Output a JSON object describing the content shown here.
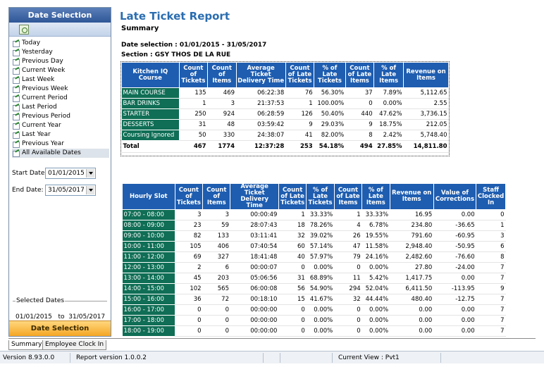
{
  "sidebar": {
    "title": "Date Selection",
    "date_options": [
      "Today",
      "Yesterday",
      "Previous Day",
      "Current Week",
      "Last Week",
      "Previous Week",
      "Current Period",
      "Last Period",
      "Previous Period",
      "Current Year",
      "Last Year",
      "Previous Year",
      "All Available Dates"
    ],
    "selected_option": "All Available Dates",
    "start_label": "Start Date:",
    "start_value": "01/01/2015",
    "end_label": "End Date:",
    "end_value": "31/05/2017",
    "selected_dates_legend": "Selected Dates",
    "selected_from": "01/01/2015",
    "selected_to_word": "to",
    "selected_to": "31/05/2017",
    "button_label": "Date Selection"
  },
  "report": {
    "title": "Late Ticket Report",
    "subtitle": "Summary",
    "date_selection": "Date selection : 01/01/2015 - 31/05/2017",
    "section": "Section : GSY THOS DE LA RUE"
  },
  "kitchen_table": {
    "headers": [
      "Kitchen IQ Course",
      "Count of Tickets",
      "Count of Items",
      "Average Ticket Delivery Time",
      "Count of Late Tickets",
      "% of Late Tickets",
      "Count of Late Items",
      "% of Late Items",
      "Revenue on Items"
    ],
    "rows": [
      [
        "MAIN COURSE",
        "135",
        "469",
        "06:22:38",
        "76",
        "56.30%",
        "37",
        "7.89%",
        "5,112.65"
      ],
      [
        "BAR DRINKS",
        "1",
        "3",
        "21:37:53",
        "1",
        "100.00%",
        "0",
        "0.00%",
        "2.55"
      ],
      [
        "STARTER",
        "250",
        "924",
        "06:28:59",
        "126",
        "50.40%",
        "440",
        "47.62%",
        "3,736.15"
      ],
      [
        "DESSERTS",
        "31",
        "48",
        "03:59:42",
        "9",
        "29.03%",
        "9",
        "18.75%",
        "212.05"
      ],
      [
        "Coursing Ignored",
        "50",
        "330",
        "24:38:07",
        "41",
        "82.00%",
        "8",
        "2.42%",
        "5,748.40"
      ]
    ],
    "total": [
      "Total",
      "467",
      "1774",
      "12:37:28",
      "253",
      "54.18%",
      "494",
      "27.85%",
      "14,811.80"
    ]
  },
  "hourly_table": {
    "headers": [
      "Hourly Slot",
      "Count of Tickets",
      "Count of Items",
      "Average Ticket Delivery Time",
      "Count of Late Tickets",
      "% of Late Tickets",
      "Count of Late Items",
      "% of Late Items",
      "Revenue on Items",
      "Value of Corrections",
      "Staff Clocked In"
    ],
    "rows": [
      [
        "07:00 - 08:00",
        "3",
        "3",
        "00:00:49",
        "1",
        "33.33%",
        "1",
        "33.33%",
        "16.95",
        "0.00",
        "0"
      ],
      [
        "08:00 - 09:00",
        "23",
        "59",
        "28:07:43",
        "18",
        "78.26%",
        "4",
        "6.78%",
        "234.80",
        "-36.65",
        "1"
      ],
      [
        "09:00 - 10:00",
        "82",
        "133",
        "03:11:41",
        "32",
        "39.02%",
        "26",
        "19.55%",
        "791.60",
        "-60.95",
        "3"
      ],
      [
        "10:00 - 11:00",
        "105",
        "406",
        "07:40:54",
        "60",
        "57.14%",
        "47",
        "11.58%",
        "2,948.40",
        "-50.95",
        "6"
      ],
      [
        "11:00 - 12:00",
        "69",
        "327",
        "18:41:48",
        "40",
        "57.97%",
        "79",
        "24.16%",
        "2,482.60",
        "-76.60",
        "8"
      ],
      [
        "12:00 - 13:00",
        "2",
        "6",
        "00:00:07",
        "0",
        "0.00%",
        "0",
        "0.00%",
        "27.80",
        "-24.00",
        "7"
      ],
      [
        "13:00 - 14:00",
        "45",
        "203",
        "05:06:56",
        "31",
        "68.89%",
        "11",
        "5.42%",
        "1,417.75",
        "0.00",
        "7"
      ],
      [
        "14:00 - 15:00",
        "102",
        "565",
        "06:00:08",
        "56",
        "54.90%",
        "294",
        "52.04%",
        "6,411.50",
        "-113.95",
        "9"
      ],
      [
        "15:00 - 16:00",
        "36",
        "72",
        "00:18:10",
        "15",
        "41.67%",
        "32",
        "44.44%",
        "480.40",
        "-12.75",
        "7"
      ],
      [
        "16:00 - 17:00",
        "0",
        "0",
        "00:00:00",
        "0",
        "0.00%",
        "0",
        "0.00%",
        "0.00",
        "0.00",
        "7"
      ],
      [
        "17:00 - 18:00",
        "0",
        "0",
        "00:00:00",
        "0",
        "0.00%",
        "0",
        "0.00%",
        "0.00",
        "0.00",
        "7"
      ],
      [
        "18:00 - 19:00",
        "0",
        "0",
        "00:00:00",
        "0",
        "0.00%",
        "0",
        "0.00%",
        "0.00",
        "0.00",
        "7"
      ]
    ]
  },
  "tabs": [
    "Summary",
    "Employee Clock In"
  ],
  "active_tab": "Summary",
  "status": {
    "version": "Version 8.93.0.0",
    "report_version": "Report version 1.0.0.2",
    "current_view": "Current View : Pvt1"
  },
  "colors": {
    "header_blue": "#1e5db0",
    "category_green": "#0f6e55",
    "title_blue": "#2a6db0",
    "button_orange": "#f5a623"
  }
}
